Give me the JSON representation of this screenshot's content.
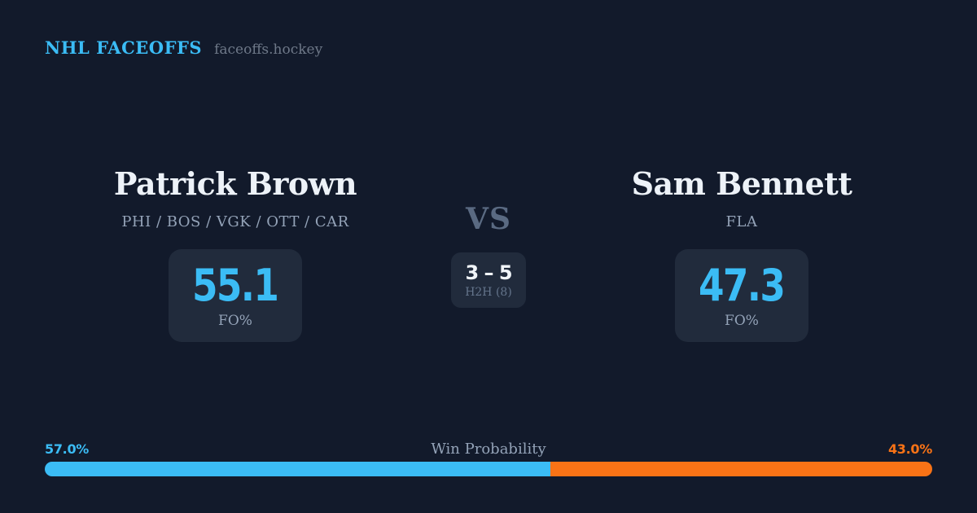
{
  "brand": {
    "title": "NHL FACEOFFS",
    "domain": "faceoffs.hockey"
  },
  "players": {
    "left": {
      "name": "Patrick Brown",
      "teams": "PHI / BOS / VGK / OTT / CAR",
      "stat_value": "55.1",
      "stat_label": "FO%"
    },
    "right": {
      "name": "Sam Bennett",
      "teams": "FLA",
      "stat_value": "47.3",
      "stat_label": "FO%"
    }
  },
  "center": {
    "vs_label": "VS",
    "h2h_score": "3 – 5",
    "h2h_label": "H2H (8)"
  },
  "win_probability": {
    "label": "Win Probability",
    "left_label": "57.0%",
    "right_label": "43.0%",
    "left_value": 57.0,
    "right_value": 43.0
  },
  "colors": {
    "background": "#121A2B",
    "card": "#212B3C",
    "accent_blue": "#3BBCF5",
    "accent_orange": "#F97316",
    "name_text": "#EDF2F8",
    "muted_text": "#94A3B8",
    "vs_text": "#5A6A82",
    "domain_text": "#6E7888",
    "score_text": "#F1F5F9"
  }
}
